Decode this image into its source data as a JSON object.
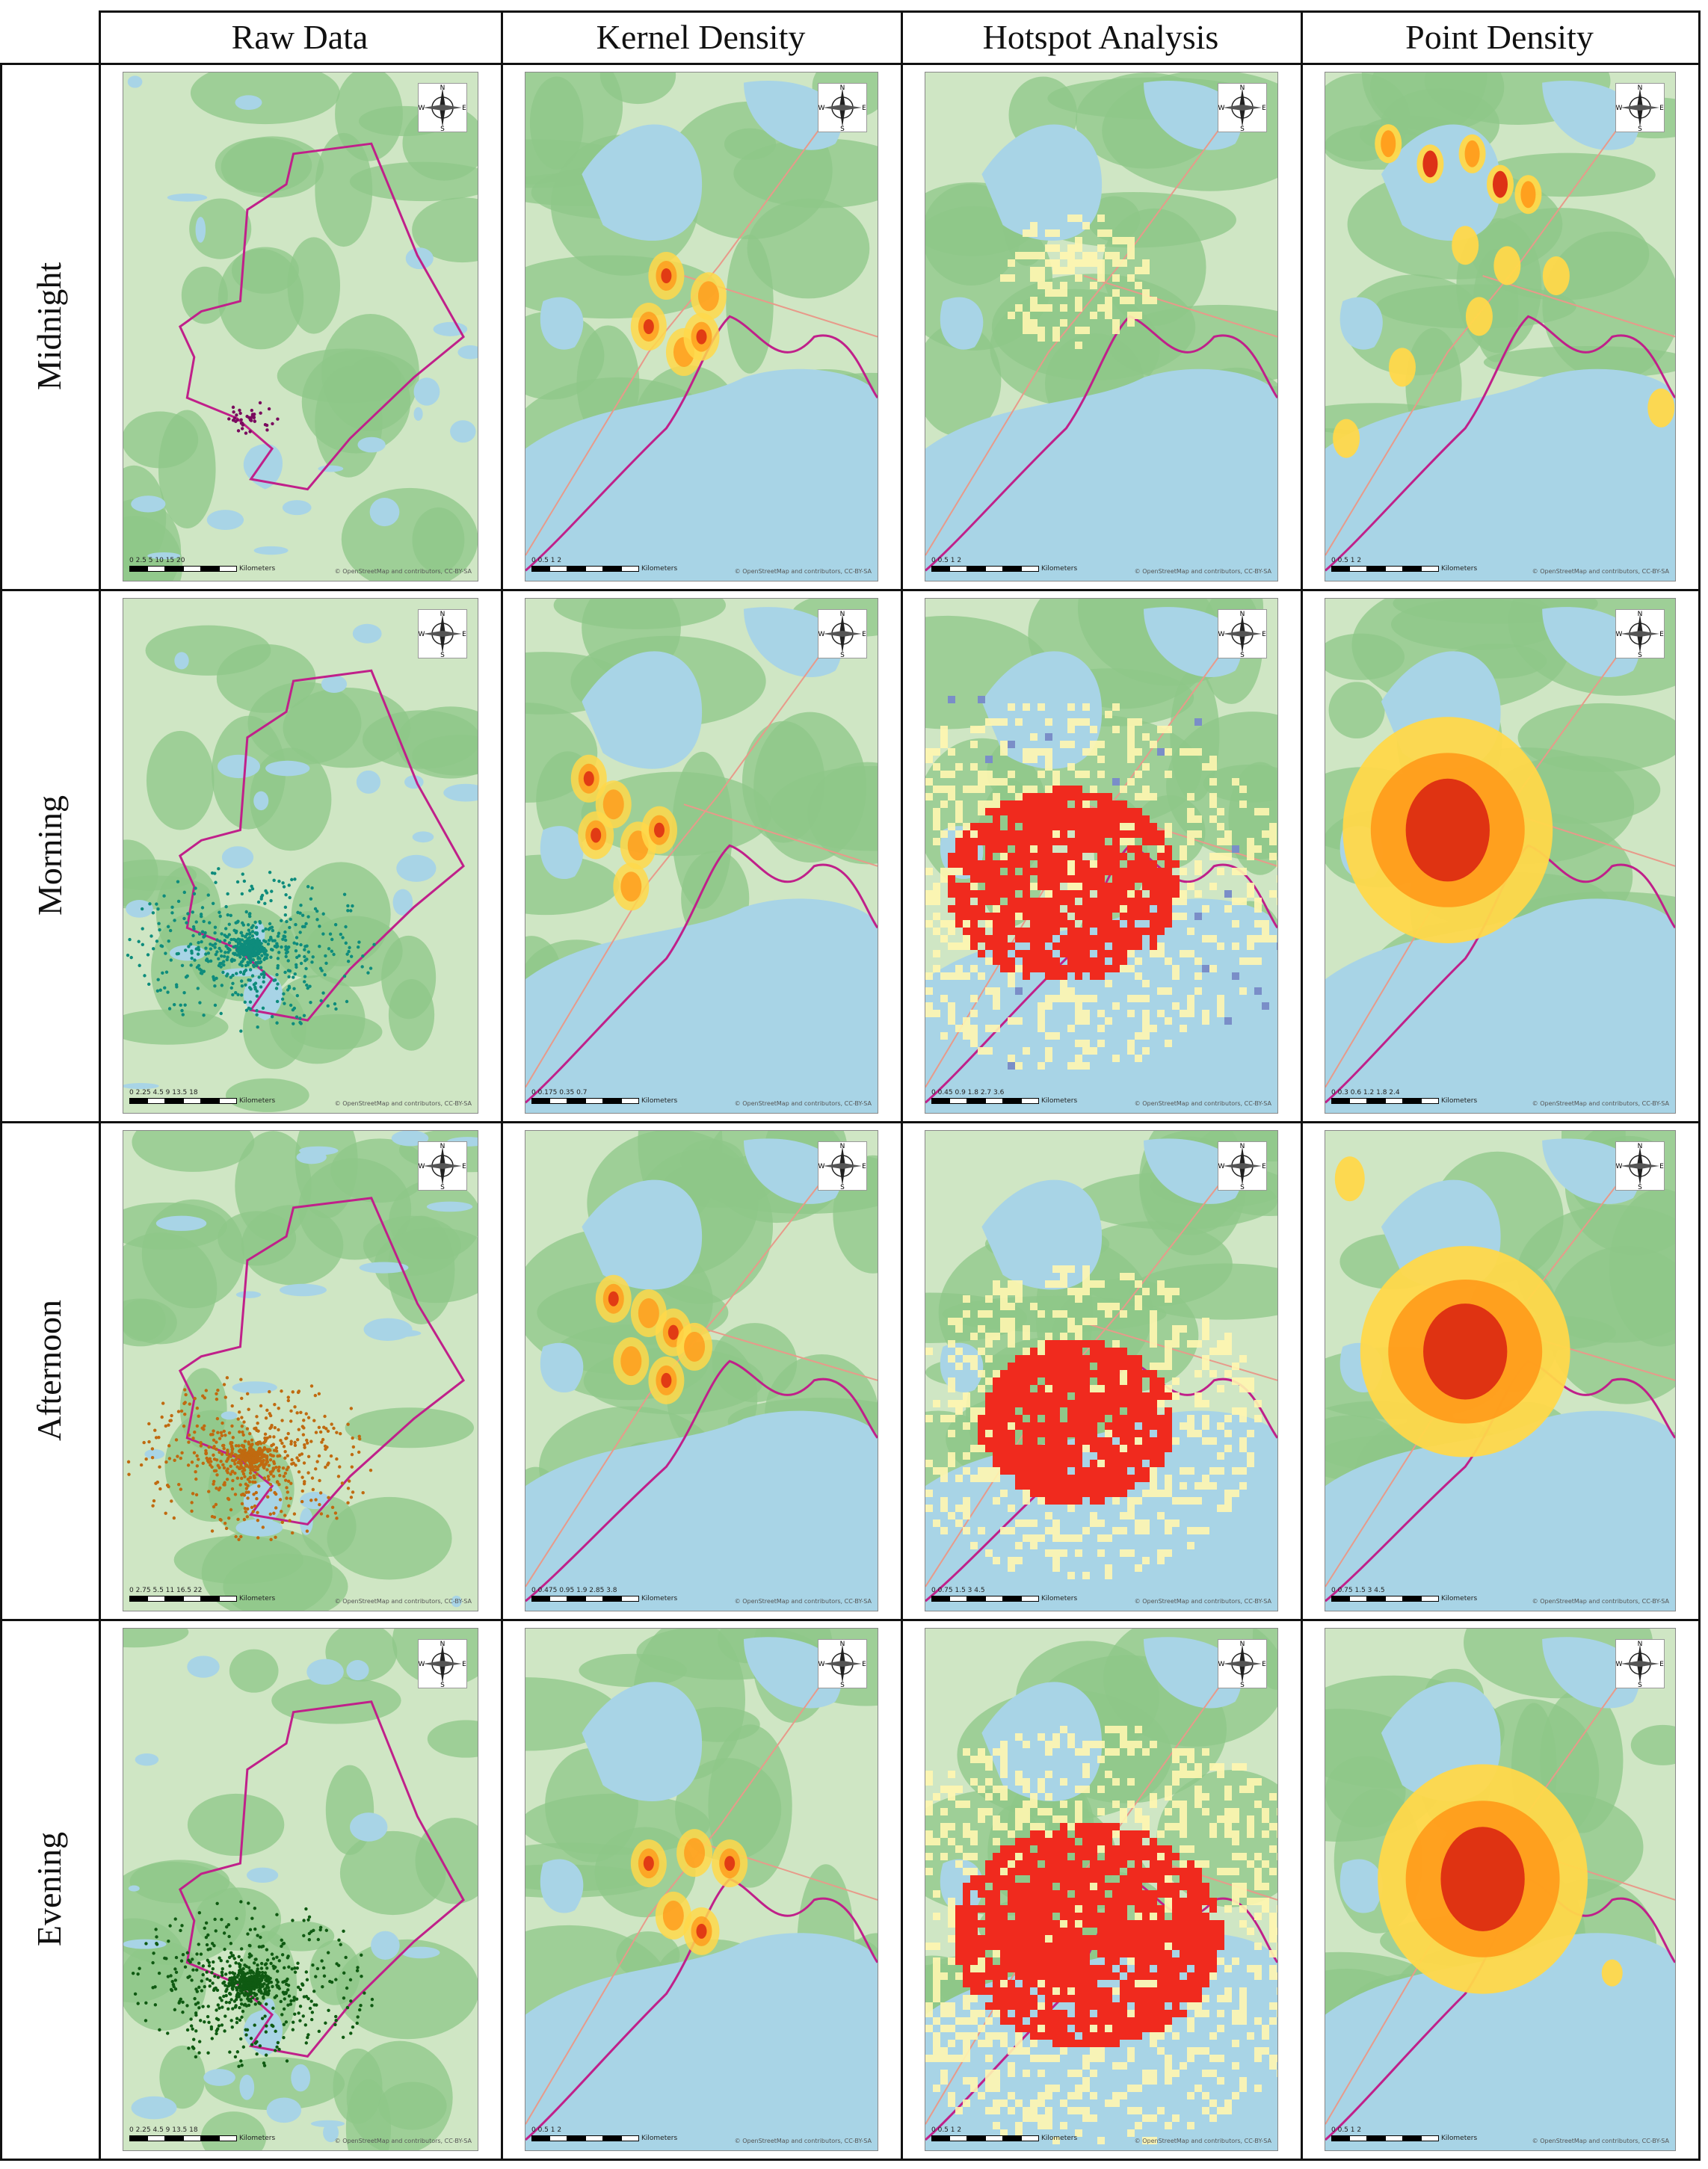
{
  "columns": [
    {
      "label": "Raw Data"
    },
    {
      "label": "Kernel Density"
    },
    {
      "label": "Hotspot Analysis"
    },
    {
      "label": "Point Density"
    }
  ],
  "rows": [
    {
      "label": "Midnight",
      "dot_color": "#7a0a5e",
      "scales": {
        "raw": "0  2.5 5    10    15    20",
        "kernel": "0  0.5  1    2",
        "hotspot": "0  0.5  1    2",
        "point": "0  0.5  1    2"
      }
    },
    {
      "label": "Morning",
      "dot_color": "#0e8c7c",
      "scales": {
        "raw": "0  2.25 4.5   9    13.5   18",
        "kernel": "0 0.175 0.35   0.7",
        "hotspot": "0  0.45 0.9   1.8   2.7  3.6",
        "point": "0  0.3 0.6  1.2   1.8  2.4"
      }
    },
    {
      "label": "Afternoon",
      "dot_color": "#c06a10",
      "scales": {
        "raw": "0  2.75 5.5   11    16.5   22",
        "kernel": "0  0.475 0.95  1.9   2.85  3.8",
        "hotspot": "0  0.75 1.5   3    4.5",
        "point": "0  0.75 1.5   3    4.5"
      }
    },
    {
      "label": "Evening",
      "dot_color": "#0f5a12",
      "scales": {
        "raw": "0  2.25 4.5   9    13.5   18",
        "kernel": "0  0.5  1    2",
        "hotspot": "0  0.5  1    2",
        "point": "0  0.5  1    2"
      }
    }
  ],
  "map_text": {
    "unit": "Kilometers",
    "attribution": "© OpenStreetMap and contributors, CC-BY-SA",
    "compass_n": "N",
    "compass_s": "S",
    "compass_e": "E",
    "compass_w": "W"
  },
  "colors": {
    "boundary": "#c0208a",
    "water": "#a8d4e6",
    "land": "#cfe6c4",
    "forest": "#8dc788",
    "density_low": "#ffd84a",
    "density_mid": "#ff9a1a",
    "density_high": "#d92010",
    "hotspot_hot": "#f02a1e",
    "hotspot_warm": "#fff6b0",
    "coldspot": "#7a8ec8"
  }
}
